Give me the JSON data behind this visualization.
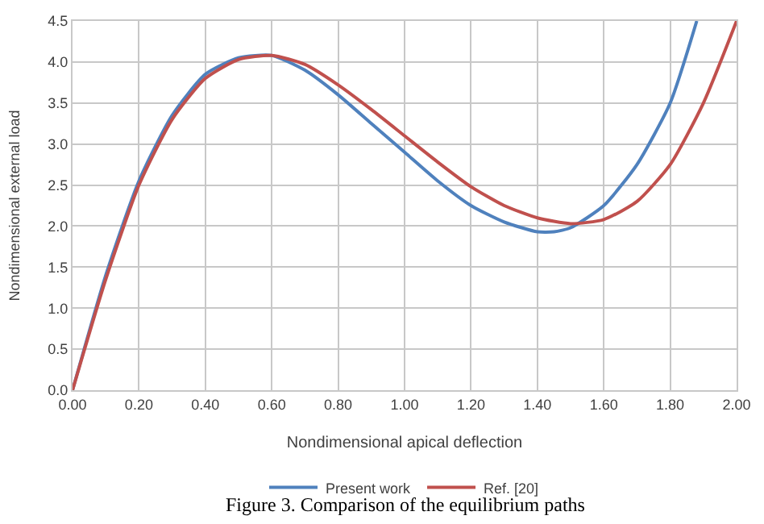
{
  "chart_data": {
    "type": "line",
    "xlabel": "Nondimensional apical deflection",
    "ylabel": "Nondimensional external load",
    "annotations": [
      "Figure 3. Comparison of the equilibrium paths"
    ],
    "series": [
      {
        "name": "Present work",
        "color": "#4f81bd",
        "x": [
          0,
          0.1,
          0.2,
          0.3,
          0.4,
          0.5,
          0.6,
          0.7,
          0.8,
          0.9,
          1.0,
          1.1,
          1.2,
          1.3,
          1.4,
          1.45,
          1.5,
          1.6,
          1.7,
          1.8,
          1.88
        ],
        "values": [
          0,
          1.4,
          2.55,
          3.35,
          3.85,
          4.05,
          4.08,
          3.9,
          3.6,
          3.25,
          2.9,
          2.55,
          2.25,
          2.05,
          1.93,
          1.93,
          1.98,
          2.25,
          2.75,
          3.5,
          4.5
        ]
      },
      {
        "name": "Ref. [20]",
        "color": "#c0504d",
        "x": [
          0,
          0.1,
          0.2,
          0.3,
          0.4,
          0.5,
          0.6,
          0.7,
          0.8,
          0.9,
          1.0,
          1.1,
          1.2,
          1.3,
          1.4,
          1.5,
          1.6,
          1.7,
          1.8,
          1.9,
          2.0
        ],
        "values": [
          0,
          1.35,
          2.5,
          3.3,
          3.8,
          4.03,
          4.08,
          3.97,
          3.72,
          3.42,
          3.1,
          2.78,
          2.48,
          2.25,
          2.1,
          2.03,
          2.08,
          2.3,
          2.75,
          3.5,
          4.5
        ]
      }
    ],
    "xlim": [
      0,
      2.0
    ],
    "xticks": [
      {
        "value": 0,
        "label": "0.00"
      },
      {
        "value": 0.2,
        "label": "0.20"
      },
      {
        "value": 0.4,
        "label": "0.40"
      },
      {
        "value": 0.6,
        "label": "0.60"
      },
      {
        "value": 0.8,
        "label": "0.80"
      },
      {
        "value": 1.0,
        "label": "1.00"
      },
      {
        "value": 1.2,
        "label": "1.20"
      },
      {
        "value": 1.4,
        "label": "1.40"
      },
      {
        "value": 1.6,
        "label": "1.60"
      },
      {
        "value": 1.8,
        "label": "1.80"
      },
      {
        "value": 2.0,
        "label": "2.00"
      }
    ],
    "ylim": [
      0,
      4.5
    ],
    "yticks": [
      {
        "value": 0,
        "label": "0.0"
      },
      {
        "value": 0.5,
        "label": "0.5"
      },
      {
        "value": 1,
        "label": "1.0"
      },
      {
        "value": 1.5,
        "label": "1.5"
      },
      {
        "value": 2,
        "label": "2.0"
      },
      {
        "value": 2.5,
        "label": "2.5"
      },
      {
        "value": 3,
        "label": "3.0"
      },
      {
        "value": 3.5,
        "label": "3.5"
      },
      {
        "value": 4,
        "label": "4.0"
      },
      {
        "value": 4.5,
        "label": "4.5"
      }
    ],
    "grid": true,
    "legend": "bottom",
    "marker": "none",
    "line_style": "solid"
  }
}
